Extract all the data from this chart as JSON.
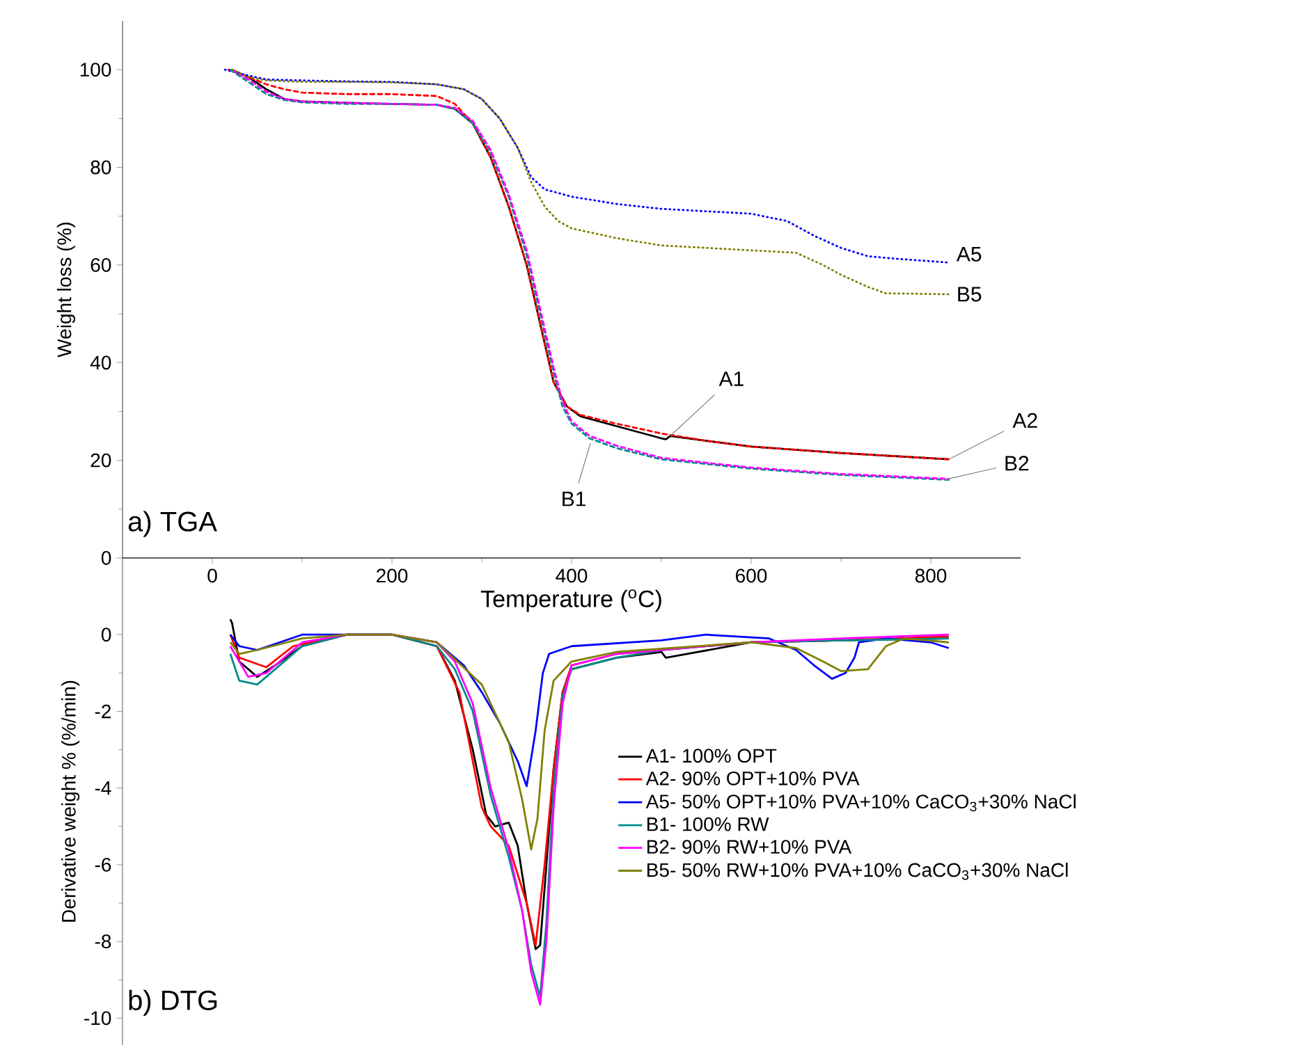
{
  "chart_data": [
    {
      "type": "line",
      "title": "a) TGA",
      "xlabel": "Temperature ($^{o}$C)",
      "ylabel": "Weight loss (%)",
      "xlim": [
        -100,
        900
      ],
      "ylim": [
        0,
        110
      ],
      "xticks": [
        0,
        200,
        400,
        600,
        800
      ],
      "yticks": [
        0,
        20,
        40,
        60,
        80,
        100
      ],
      "legend": false,
      "marker": "none",
      "annotations": [
        {
          "text": "A1",
          "x": 510,
          "y": 25
        },
        {
          "text": "A2",
          "x": 820,
          "y": 20.2
        },
        {
          "text": "A5",
          "x": 820,
          "y": 60.5
        },
        {
          "text": "B1",
          "x": 421,
          "y": 23.5
        },
        {
          "text": "B2",
          "x": 815,
          "y": 16
        },
        {
          "text": "B5",
          "x": 820,
          "y": 54
        }
      ],
      "series": [
        {
          "color": "#000000",
          "line_style": "solid",
          "x": [
            22,
            40,
            60,
            80,
            100,
            150,
            200,
            250,
            270,
            290,
            310,
            330,
            350,
            365,
            380,
            395,
            410,
            450,
            500,
            505,
            510,
            550,
            600,
            700,
            820
          ],
          "values": [
            100,
            98.5,
            96,
            94,
            93.5,
            93.2,
            93,
            92.8,
            92,
            89,
            82,
            72,
            60,
            48,
            36,
            31,
            29,
            27,
            24.5,
            24.3,
            25,
            24,
            22.8,
            21.5,
            20.2
          ]
        },
        {
          "color": "#ff0000",
          "line_style": "dashed",
          "x": [
            18,
            40,
            60,
            80,
            100,
            150,
            200,
            250,
            270,
            290,
            310,
            330,
            350,
            365,
            380,
            395,
            410,
            450,
            500,
            550,
            600,
            700,
            820
          ],
          "values": [
            100,
            98.5,
            97,
            96,
            95.3,
            95,
            95,
            94.6,
            93,
            89,
            82,
            72,
            60,
            48,
            36,
            31,
            29.3,
            27.5,
            25.5,
            24,
            22.8,
            21.5,
            20.2
          ]
        },
        {
          "color": "#0000ff",
          "line_style": "dotted",
          "x": [
            14,
            40,
            60,
            100,
            150,
            200,
            250,
            280,
            300,
            320,
            340,
            355,
            370,
            400,
            450,
            500,
            550,
            600,
            640,
            670,
            700,
            730,
            760,
            820
          ],
          "values": [
            100,
            98.8,
            98,
            97.8,
            97.6,
            97.5,
            97,
            96,
            94,
            90,
            84,
            78,
            75.5,
            74,
            72.5,
            71.5,
            71,
            70.5,
            69,
            66,
            63.5,
            61.8,
            61.3,
            60.5
          ]
        },
        {
          "color": "#008b8b",
          "line_style": "dashed",
          "x": [
            20,
            40,
            60,
            80,
            100,
            150,
            200,
            250,
            270,
            290,
            310,
            330,
            350,
            365,
            380,
            390,
            400,
            420,
            450,
            500,
            600,
            700,
            820
          ],
          "values": [
            100,
            97.5,
            95,
            93.8,
            93.3,
            93,
            93,
            92.8,
            92,
            89,
            83,
            74,
            62,
            50,
            38,
            31,
            27.5,
            24.5,
            22.5,
            20.2,
            18.3,
            17,
            16
          ]
        },
        {
          "color": "#ff00ff",
          "line_style": "dashed",
          "x": [
            22,
            40,
            60,
            80,
            100,
            150,
            200,
            250,
            270,
            290,
            310,
            330,
            350,
            365,
            380,
            390,
            400,
            420,
            450,
            500,
            600,
            700,
            820
          ],
          "values": [
            100,
            98,
            95.5,
            94,
            93.5,
            93.2,
            93,
            92.8,
            92.2,
            89.5,
            83.5,
            74.5,
            63,
            51,
            39,
            32,
            28,
            25,
            23,
            20.5,
            18.5,
            17.2,
            16.2
          ]
        },
        {
          "color": "#808000",
          "line_style": "dotted",
          "x": [
            22,
            40,
            60,
            100,
            150,
            200,
            250,
            280,
            300,
            320,
            340,
            355,
            370,
            385,
            400,
            450,
            500,
            550,
            600,
            650,
            680,
            700,
            730,
            750,
            820
          ],
          "values": [
            100,
            98.5,
            97.8,
            97.5,
            97.5,
            97.4,
            97,
            96,
            94,
            90,
            84,
            77,
            72,
            69,
            67.5,
            65.5,
            64,
            63.5,
            63,
            62.5,
            60,
            58,
            55.5,
            54.2,
            54
          ]
        }
      ]
    },
    {
      "type": "line",
      "title": "b) DTG",
      "ylabel": "Derivative weight % (%/min)",
      "xlim": [
        -100,
        900
      ],
      "ylim": [
        -10.7,
        2
      ],
      "yticks": [
        -10,
        -8,
        -6,
        -4,
        -2,
        0
      ],
      "legend": "right",
      "tick_labels": "y",
      "marker": "none",
      "line_style": "solid",
      "series": [
        {
          "name": "A1- 100% OPT",
          "color": "#000000",
          "x": [
            20,
            22,
            30,
            50,
            70,
            100,
            150,
            200,
            250,
            270,
            290,
            305,
            315,
            330,
            340,
            350,
            360,
            365,
            372,
            380,
            390,
            400,
            450,
            500,
            505,
            600,
            700,
            820
          ],
          "values": [
            0.4,
            0.3,
            -0.7,
            -1.1,
            -0.8,
            -0.3,
            0,
            0,
            -0.3,
            -1.2,
            -3,
            -4.7,
            -5,
            -4.9,
            -5.5,
            -7,
            -8.2,
            -8.1,
            -6,
            -3.5,
            -1.5,
            -0.9,
            -0.6,
            -0.45,
            -0.6,
            -0.2,
            -0.15,
            -0.1
          ]
        },
        {
          "name": "A2- 90% OPT+10% PVA",
          "color": "#ff0000",
          "x": [
            20,
            30,
            60,
            90,
            150,
            200,
            250,
            275,
            300,
            310,
            330,
            350,
            360,
            370,
            380,
            390,
            400,
            450,
            600,
            700,
            820
          ],
          "values": [
            0,
            -0.6,
            -0.85,
            -0.3,
            0,
            0,
            -0.3,
            -1.5,
            -4.5,
            -5,
            -5.5,
            -7,
            -8.1,
            -6,
            -3.5,
            -1.5,
            -0.8,
            -0.5,
            -0.2,
            -0.15,
            -0.05
          ]
        },
        {
          "name": "A5- 50% OPT+10% PVA+10% CaCO$_{3}$+30% NaCl",
          "color": "#0000ff",
          "x": [
            20,
            30,
            50,
            100,
            150,
            200,
            250,
            280,
            300,
            320,
            340,
            350,
            360,
            368,
            375,
            400,
            500,
            550,
            620,
            650,
            670,
            690,
            705,
            715,
            720,
            750,
            800,
            820
          ],
          "values": [
            0,
            -0.3,
            -0.4,
            0,
            0,
            0,
            -0.2,
            -0.8,
            -1.5,
            -2.3,
            -3.3,
            -3.95,
            -2.5,
            -1,
            -0.5,
            -0.3,
            -0.15,
            0,
            -0.1,
            -0.4,
            -0.8,
            -1.15,
            -1,
            -0.6,
            -0.2,
            -0.1,
            -0.2,
            -0.35
          ]
        },
        {
          "name": "B1- 100% RW",
          "color": "#008b8b",
          "x": [
            20,
            30,
            50,
            70,
            100,
            150,
            200,
            250,
            270,
            290,
            310,
            330,
            345,
            355,
            365,
            372,
            380,
            390,
            400,
            450,
            500,
            600,
            700,
            820
          ],
          "values": [
            -0.5,
            -1.2,
            -1.3,
            -0.9,
            -0.3,
            0,
            0,
            -0.3,
            -0.9,
            -2,
            -4.2,
            -5.8,
            -7.2,
            -8.6,
            -9.45,
            -7.5,
            -4,
            -1.6,
            -0.9,
            -0.6,
            -0.4,
            -0.2,
            -0.15,
            -0.1
          ]
        },
        {
          "name": "B2- 90% RW+10% PVA",
          "color": "#ff00ff",
          "x": [
            20,
            40,
            60,
            100,
            150,
            200,
            250,
            270,
            290,
            310,
            330,
            345,
            355,
            365,
            372,
            380,
            390,
            400,
            450,
            600,
            700,
            820
          ],
          "values": [
            -0.3,
            -1.1,
            -1.0,
            -0.2,
            0,
            0,
            -0.2,
            -0.7,
            -1.8,
            -4,
            -5.6,
            -7.2,
            -8.8,
            -9.65,
            -8,
            -4.5,
            -1.8,
            -0.8,
            -0.5,
            -0.2,
            -0.1,
            0
          ]
        },
        {
          "name": "B5- 50% RW+10% PVA+10% CaCO$_{3}$+30% NaCl",
          "color": "#808000",
          "x": [
            20,
            30,
            50,
            100,
            150,
            200,
            250,
            300,
            330,
            345,
            355,
            362,
            370,
            380,
            400,
            450,
            600,
            650,
            680,
            700,
            730,
            750,
            770,
            820
          ],
          "values": [
            -0.2,
            -0.5,
            -0.4,
            -0.1,
            0,
            0,
            -0.2,
            -1.3,
            -2.8,
            -4.3,
            -5.6,
            -4.8,
            -2.5,
            -1.2,
            -0.7,
            -0.45,
            -0.2,
            -0.35,
            -0.7,
            -0.95,
            -0.9,
            -0.3,
            -0.1,
            -0.2
          ]
        }
      ]
    }
  ]
}
